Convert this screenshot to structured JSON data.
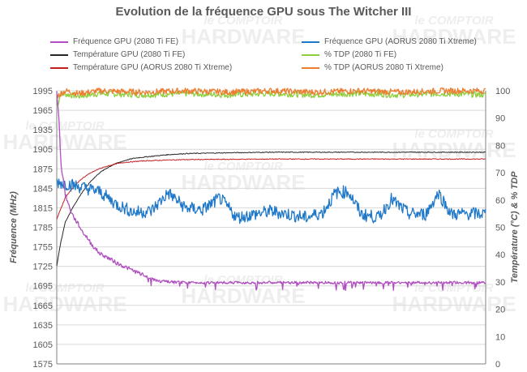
{
  "chart_data": {
    "type": "line",
    "title": "Evolution de la fréquence GPU sous The Witcher III",
    "ylabel": "Fréquence (MHz)",
    "y2label": "Température (°C) & % TDP",
    "ylim": [
      1575,
      1995
    ],
    "y_ticks": [
      1575,
      1605,
      1635,
      1665,
      1695,
      1725,
      1755,
      1785,
      1815,
      1845,
      1875,
      1905,
      1935,
      1965,
      1995
    ],
    "y2lim": [
      0,
      100
    ],
    "y2_ticks": [
      0,
      10,
      20,
      30,
      40,
      50,
      60,
      70,
      80,
      90,
      100
    ],
    "x_range": [
      0,
      100
    ],
    "series": [
      {
        "name": "Fréquence GPU (2080 Ti FE)",
        "axis": "left",
        "color": "#b04fbf",
        "points": [
          [
            0,
            1995
          ],
          [
            0.5,
            1955
          ],
          [
            1,
            1880
          ],
          [
            1.5,
            1860
          ],
          [
            2,
            1835
          ],
          [
            3,
            1815
          ],
          [
            4,
            1800
          ],
          [
            5,
            1790
          ],
          [
            6,
            1778
          ],
          [
            7,
            1770
          ],
          [
            8,
            1760
          ],
          [
            9,
            1752
          ],
          [
            10,
            1745
          ],
          [
            12,
            1738
          ],
          [
            14,
            1730
          ],
          [
            16,
            1724
          ],
          [
            18,
            1718
          ],
          [
            20,
            1712
          ],
          [
            22,
            1706
          ],
          [
            24,
            1702
          ],
          [
            30,
            1700
          ],
          [
            40,
            1700
          ],
          [
            50,
            1700
          ],
          [
            60,
            1700
          ],
          [
            70,
            1700
          ],
          [
            80,
            1700
          ],
          [
            90,
            1700
          ],
          [
            100,
            1700
          ]
        ]
      },
      {
        "name": "Fréquence GPU (AORUS 2080 Ti Xtreme)",
        "axis": "left",
        "color": "#1f78c8",
        "points": [
          [
            0,
            1855
          ],
          [
            5,
            1848
          ],
          [
            10,
            1840
          ],
          [
            14,
            1820
          ],
          [
            18,
            1808
          ],
          [
            22,
            1810
          ],
          [
            26,
            1838
          ],
          [
            30,
            1815
          ],
          [
            34,
            1812
          ],
          [
            38,
            1830
          ],
          [
            42,
            1800
          ],
          [
            46,
            1805
          ],
          [
            50,
            1810
          ],
          [
            54,
            1805
          ],
          [
            58,
            1800
          ],
          [
            62,
            1808
          ],
          [
            65,
            1838
          ],
          [
            68,
            1840
          ],
          [
            71,
            1805
          ],
          [
            75,
            1800
          ],
          [
            78,
            1828
          ],
          [
            82,
            1806
          ],
          [
            86,
            1805
          ],
          [
            89,
            1838
          ],
          [
            92,
            1805
          ],
          [
            96,
            1806
          ],
          [
            100,
            1806
          ]
        ]
      },
      {
        "name": "Température GPU  (2080 Ti FE)",
        "axis": "right",
        "color": "#262626",
        "points": [
          [
            0,
            36
          ],
          [
            1,
            45
          ],
          [
            2,
            52
          ],
          [
            4,
            58
          ],
          [
            6,
            63
          ],
          [
            8,
            67
          ],
          [
            10,
            70
          ],
          [
            12,
            72
          ],
          [
            14,
            73.5
          ],
          [
            16,
            74.5
          ],
          [
            18,
            75.3
          ],
          [
            22,
            76
          ],
          [
            26,
            76.6
          ],
          [
            30,
            77
          ],
          [
            40,
            77.3
          ],
          [
            50,
            77.5
          ],
          [
            60,
            77.5
          ],
          [
            70,
            77.5
          ],
          [
            80,
            77.5
          ],
          [
            90,
            77.5
          ],
          [
            100,
            77.5
          ]
        ]
      },
      {
        "name": "% TDP (2080 Ti FE)",
        "axis": "right",
        "color": "#8fce3e",
        "points": [
          [
            0,
            94
          ],
          [
            1,
            99
          ],
          [
            5,
            98
          ],
          [
            10,
            99
          ],
          [
            20,
            98.5
          ],
          [
            30,
            99
          ],
          [
            40,
            98.5
          ],
          [
            50,
            99
          ],
          [
            60,
            98.5
          ],
          [
            70,
            99
          ],
          [
            80,
            98.5
          ],
          [
            90,
            99
          ],
          [
            100,
            98.5
          ]
        ]
      },
      {
        "name": "Température GPU  (AORUS 2080 Ti Xtreme)",
        "axis": "right",
        "color": "#c21f1f",
        "points": [
          [
            0,
            53
          ],
          [
            1,
            57
          ],
          [
            2,
            61
          ],
          [
            4,
            65
          ],
          [
            6,
            68
          ],
          [
            8,
            70
          ],
          [
            10,
            71.5
          ],
          [
            12,
            72.5
          ],
          [
            14,
            73.3
          ],
          [
            16,
            73.8
          ],
          [
            20,
            74.3
          ],
          [
            25,
            74.6
          ],
          [
            30,
            74.8
          ],
          [
            40,
            74.9
          ],
          [
            50,
            75
          ],
          [
            60,
            75
          ],
          [
            70,
            75
          ],
          [
            80,
            75
          ],
          [
            90,
            75
          ],
          [
            100,
            75
          ]
        ]
      },
      {
        "name": "% TDP (AORUS 2080 Ti Xtreme)",
        "axis": "right",
        "color": "#ed7d31",
        "points": [
          [
            0,
            98
          ],
          [
            2,
            100
          ],
          [
            5,
            99
          ],
          [
            10,
            100
          ],
          [
            20,
            99.5
          ],
          [
            30,
            100
          ],
          [
            40,
            99.5
          ],
          [
            50,
            100
          ],
          [
            60,
            99.5
          ],
          [
            70,
            100
          ],
          [
            80,
            99.5
          ],
          [
            90,
            100
          ],
          [
            100,
            100
          ]
        ]
      }
    ]
  },
  "watermark": {
    "line1": "le COMPTOIR",
    "line2": "HARDWARE"
  }
}
